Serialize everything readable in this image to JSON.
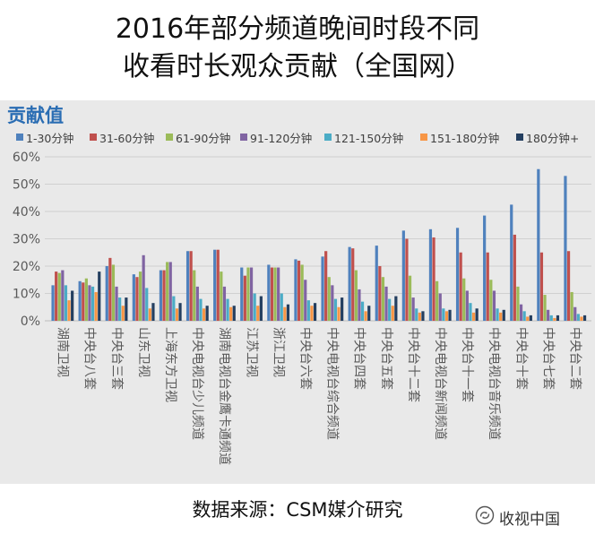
{
  "footer": {
    "source": "数据来源：CSM媒介研究",
    "watermark": "收视中国",
    "watermark_icon": "wechat-icon"
  },
  "chart_data": {
    "type": "bar",
    "title_lines": [
      "2016年部分频道晚间时段不同",
      "收看时长观众贡献（全国网）"
    ],
    "ylabel": "贡献值",
    "ylim": [
      0,
      60
    ],
    "yticks": [
      0,
      10,
      20,
      30,
      40,
      50,
      60
    ],
    "ytick_labels": [
      "0%",
      "10%",
      "20%",
      "30%",
      "40%",
      "50%",
      "60%"
    ],
    "grid": true,
    "categories": [
      "湖南卫视",
      "中央台八套",
      "中央台三套",
      "山东卫视",
      "上海东方卫视",
      "中央电视台少儿频道",
      "湖南电视台金鹰卡通频道",
      "江苏卫视",
      "浙江卫视",
      "中央台六套",
      "中央电视台综合频道",
      "中央台四套",
      "中央台五套",
      "中央台十二套",
      "中央电视台新闻频道",
      "中央台十一套",
      "中央电视台音乐频道",
      "中央台十套",
      "中央台七套",
      "中央台二套"
    ],
    "series": [
      {
        "name": "1-30分钟",
        "color": "#4F81BD",
        "values": [
          13,
          14.5,
          20,
          17,
          18.5,
          25.5,
          26,
          19.5,
          20.5,
          22.5,
          23.5,
          27,
          27.5,
          33,
          33.5,
          34,
          38.5,
          42.5,
          55.5,
          53
        ]
      },
      {
        "name": "31-60分钟",
        "color": "#C0504D",
        "values": [
          18,
          14,
          23,
          16,
          18.5,
          25.5,
          26,
          16.5,
          19.5,
          22,
          25.5,
          26.5,
          20,
          30,
          30.5,
          25,
          25,
          31.5,
          25,
          25.5
        ]
      },
      {
        "name": "61-90分钟",
        "color": "#9BBB59",
        "values": [
          17.5,
          15.5,
          20.5,
          18,
          21.5,
          18.5,
          18,
          19.5,
          19.5,
          20.5,
          16,
          18.5,
          16,
          16.5,
          14.5,
          15.5,
          15,
          12.5,
          9.5,
          10.5
        ]
      },
      {
        "name": "91-120分钟",
        "color": "#8064A2",
        "values": [
          18.5,
          13,
          12.5,
          24,
          21.5,
          12.5,
          12.5,
          19.5,
          19.5,
          15,
          13,
          11.5,
          12.5,
          8.5,
          10,
          11,
          11,
          6,
          4,
          5
        ]
      },
      {
        "name": "121-150分钟",
        "color": "#4BACC6",
        "values": [
          13,
          12.5,
          8.5,
          12,
          9,
          8,
          8,
          10,
          10,
          7.5,
          8,
          7,
          8,
          4.5,
          4.5,
          6.5,
          4.5,
          3.5,
          2,
          2.5
        ]
      },
      {
        "name": "151-180分钟",
        "color": "#F79646",
        "values": [
          7.5,
          10.5,
          5.5,
          4.5,
          4.5,
          4.5,
          5,
          5.5,
          5,
          5.5,
          5,
          3.5,
          5.5,
          3,
          3.5,
          3,
          3,
          1.5,
          1,
          1.5
        ]
      },
      {
        "name": "180分钟+",
        "color": "#243F60",
        "values": [
          11,
          18,
          8.5,
          6.5,
          6.5,
          5.5,
          5.5,
          9,
          6,
          6.5,
          8.5,
          5.5,
          9,
          3.5,
          4,
          4.5,
          4,
          2,
          2,
          2
        ]
      }
    ]
  }
}
